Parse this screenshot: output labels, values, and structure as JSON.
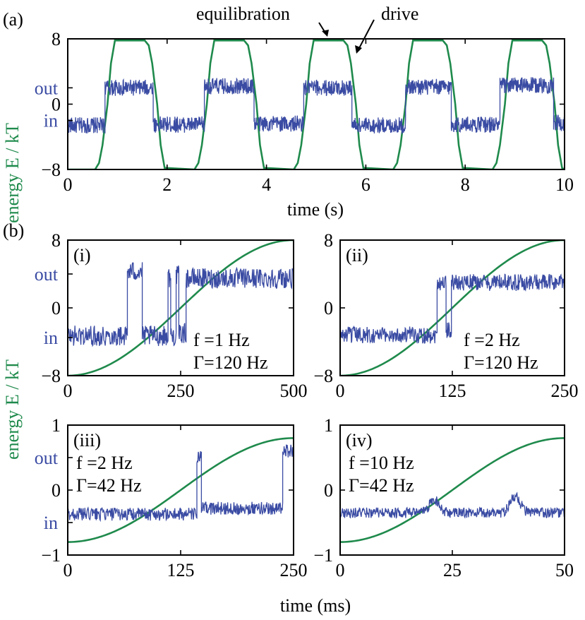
{
  "colors": {
    "drive": "#1f8a4c",
    "signal": "#3a4ba3",
    "axis": "#000000"
  },
  "figure": {
    "panel_a_label": "(a)",
    "panel_b_label": "(b)",
    "ylabel": "energy E / kT",
    "ylabel_b": "energy E / kT",
    "xlabel_a": "time (s)",
    "xlabel_b": "time (ms)",
    "annot_equilibration": "equilibration",
    "annot_drive": "drive"
  },
  "chart_data": [
    {
      "id": "a",
      "type": "line",
      "title": "",
      "xlabel": "time (s)",
      "ylabel": "energy E / kT",
      "xlim": [
        0,
        10
      ],
      "ylim": [
        -8,
        8
      ],
      "xticks": [
        "0",
        "2",
        "4",
        "6",
        "8",
        "10"
      ],
      "yticks": [
        {
          "v": 8,
          "t": "8"
        },
        {
          "v": 0,
          "t": "0"
        },
        {
          "v": -8,
          "t": "−8"
        }
      ],
      "state_labels": [
        {
          "v": 2,
          "t": "out"
        },
        {
          "v": -2,
          "t": "in"
        }
      ],
      "series": [
        {
          "role": "drive",
          "x": [
            0,
            0.55,
            0.63,
            0.7,
            0.8,
            0.87,
            0.95,
            1.55,
            1.63,
            1.7,
            1.8,
            1.87,
            1.95,
            2.55,
            2.63,
            2.7,
            2.8,
            2.87,
            2.95,
            3.55,
            3.63,
            3.7,
            3.8,
            3.87,
            3.95,
            4.55,
            4.63,
            4.7,
            4.8,
            4.87,
            4.95,
            5.55,
            5.63,
            5.7,
            5.8,
            5.87,
            5.95,
            6.55,
            6.63,
            6.7,
            6.8,
            6.87,
            6.95,
            7.55,
            7.63,
            7.7,
            7.8,
            7.87,
            7.95,
            8.55,
            8.63,
            8.7,
            8.8,
            8.87,
            8.95,
            9.55,
            9.63,
            9.7,
            9.8,
            9.87,
            9.95,
            10
          ],
          "y": [
            -8,
            -8,
            -7.2,
            -5,
            0,
            5,
            7.8,
            7.8,
            7.2,
            5,
            0,
            -5,
            -7.8,
            -8,
            -7.2,
            -5,
            0,
            5,
            7.8,
            7.8,
            7.2,
            5,
            0,
            -5,
            -7.8,
            -8,
            -7.2,
            -5,
            0,
            5,
            7.8,
            7.8,
            7.2,
            5,
            0,
            -5,
            -7.8,
            -8,
            -7.2,
            -5,
            0,
            5,
            7.8,
            7.8,
            7.2,
            5,
            0,
            -5,
            -7.8,
            -8,
            -7.2,
            -5,
            0,
            5,
            7.8,
            7.8,
            7.2,
            5,
            0,
            -5,
            -7.8,
            -8
          ]
        },
        {
          "role": "signal",
          "segments": [
            {
              "x0": 0,
              "x1": 0.75,
              "y": -2.6
            },
            {
              "x0": 0.75,
              "x1": 1.72,
              "y": 2.0
            },
            {
              "x0": 1.72,
              "x1": 2.75,
              "y": -2.5
            },
            {
              "x0": 2.75,
              "x1": 3.75,
              "y": 2.2
            },
            {
              "x0": 3.75,
              "x1": 4.75,
              "y": -2.4
            },
            {
              "x0": 4.75,
              "x1": 5.72,
              "y": 2.0
            },
            {
              "x0": 5.72,
              "x1": 6.8,
              "y": -2.6
            },
            {
              "x0": 6.8,
              "x1": 7.72,
              "y": 2.1
            },
            {
              "x0": 7.72,
              "x1": 8.7,
              "y": -2.5
            },
            {
              "x0": 8.7,
              "x1": 9.78,
              "y": 2.3
            },
            {
              "x0": 9.78,
              "x1": 10,
              "y": -2.3
            }
          ],
          "noise": 1.0
        }
      ]
    },
    {
      "id": "i",
      "type": "line",
      "panel_label": "(i)",
      "xlim": [
        0,
        500
      ],
      "ylim": [
        -8,
        8
      ],
      "xticks": [
        "0",
        "250",
        "500"
      ],
      "yticks": [
        {
          "v": 8,
          "t": "8"
        },
        {
          "v": 0,
          "t": "0"
        },
        {
          "v": -8,
          "t": "−8"
        }
      ],
      "state_labels": [
        {
          "v": 4,
          "t": "out"
        },
        {
          "v": -3.5,
          "t": "in"
        }
      ],
      "text": [
        "f =1 Hz",
        "Γ=120 Hz"
      ],
      "series": [
        {
          "role": "drive",
          "kind": "cosine",
          "from": -8,
          "to": 8
        },
        {
          "role": "signal",
          "segments": [
            {
              "x0": 0,
              "x1": 132,
              "y": -3.3
            },
            {
              "x0": 132,
              "x1": 165,
              "y": 4.3
            },
            {
              "x0": 165,
              "x1": 222,
              "y": -3.3
            },
            {
              "x0": 222,
              "x1": 228,
              "y": 3.6
            },
            {
              "x0": 228,
              "x1": 240,
              "y": -3.3
            },
            {
              "x0": 240,
              "x1": 246,
              "y": 3.8
            },
            {
              "x0": 246,
              "x1": 262,
              "y": -3.0
            },
            {
              "x0": 262,
              "x1": 500,
              "y": 3.5
            }
          ],
          "noise": 1.2
        }
      ]
    },
    {
      "id": "ii",
      "type": "line",
      "panel_label": "(ii)",
      "xlim": [
        0,
        250
      ],
      "ylim": [
        -8,
        8
      ],
      "xticks": [
        "0",
        "125",
        "250"
      ],
      "yticks": [
        {
          "v": 8,
          "t": "8"
        },
        {
          "v": 0,
          "t": "0"
        },
        {
          "v": -8,
          "t": "−8"
        }
      ],
      "text": [
        "f =2 Hz",
        "Γ=120 Hz"
      ],
      "series": [
        {
          "role": "drive",
          "kind": "cosine",
          "from": -8,
          "to": 8
        },
        {
          "role": "signal",
          "segments": [
            {
              "x0": 0,
              "x1": 108,
              "y": -3.2
            },
            {
              "x0": 108,
              "x1": 118,
              "y": 3.0
            },
            {
              "x0": 118,
              "x1": 124,
              "y": -2.6
            },
            {
              "x0": 124,
              "x1": 250,
              "y": 3.0
            }
          ],
          "noise": 1.0
        }
      ]
    },
    {
      "id": "iii",
      "type": "line",
      "panel_label": "(iii)",
      "xlim": [
        0,
        250
      ],
      "ylim": [
        -1,
        1
      ],
      "xticks": [
        "0",
        "125",
        "250"
      ],
      "yticks": [
        {
          "v": 1,
          "t": "1"
        },
        {
          "v": 0,
          "t": "0"
        },
        {
          "v": -1,
          "t": "−1"
        }
      ],
      "state_labels": [
        {
          "v": 0.5,
          "t": "out"
        },
        {
          "v": -0.5,
          "t": "in"
        }
      ],
      "text": [
        "f =2 Hz",
        "Γ=42 Hz"
      ],
      "series": [
        {
          "role": "drive",
          "kind": "cosine",
          "from": -0.8,
          "to": 0.8
        },
        {
          "role": "signal",
          "segments": [
            {
              "x0": 0,
              "x1": 143,
              "y": -0.37
            },
            {
              "x0": 143,
              "x1": 148,
              "y": 0.5
            },
            {
              "x0": 148,
              "x1": 238,
              "y": -0.28
            },
            {
              "x0": 238,
              "x1": 250,
              "y": 0.6
            }
          ],
          "noise": 0.1
        }
      ]
    },
    {
      "id": "iv",
      "type": "line",
      "panel_label": "(iv)",
      "xlim": [
        0,
        50
      ],
      "ylim": [
        -1,
        1
      ],
      "xticks": [
        "0",
        "25",
        "50"
      ],
      "yticks": [
        {
          "v": 1,
          "t": "1"
        },
        {
          "v": 0,
          "t": "0"
        },
        {
          "v": -1,
          "t": "−1"
        }
      ],
      "text": [
        "f =10 Hz",
        "Γ=42 Hz"
      ],
      "series": [
        {
          "role": "drive",
          "kind": "cosine",
          "from": -0.8,
          "to": 0.8
        },
        {
          "role": "signal",
          "segments": [
            {
              "x0": 0,
              "x1": 50,
              "y": -0.35
            }
          ],
          "bumps": [
            {
              "x": 21,
              "h": 0.2
            },
            {
              "x": 39,
              "h": 0.25
            }
          ],
          "noise": 0.08
        }
      ]
    }
  ]
}
